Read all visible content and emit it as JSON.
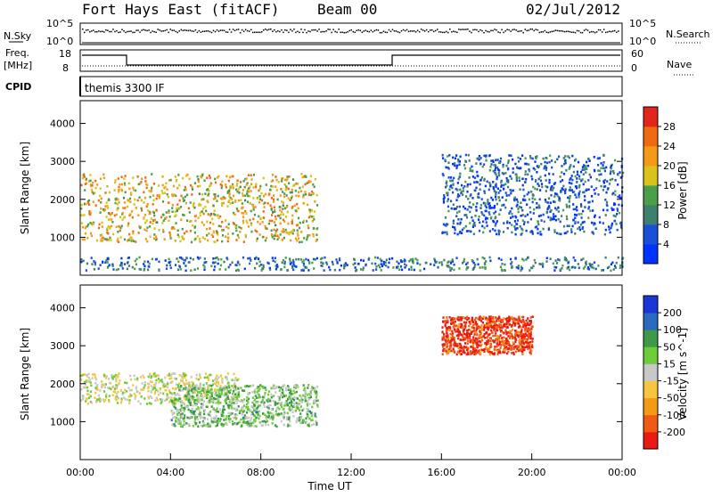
{
  "header": {
    "station": "Fort Hays East (fitACF)",
    "beam": "Beam 00",
    "date": "02/Jul/2012"
  },
  "noise_panel": {
    "left_label": "N.Sky",
    "left_ticks": [
      "10^5",
      "10^0"
    ],
    "right_label": "N.Search",
    "right_ticks": [
      "10^5",
      "10^0"
    ]
  },
  "freq_panel": {
    "left_label_1": "Freq.",
    "left_label_2": "[MHz]",
    "left_ticks": [
      "18",
      "8"
    ],
    "right_label": "Nave",
    "right_ticks": [
      "60",
      "0"
    ],
    "cpid_label": "CPID",
    "cpid_text": "themis 3300 IF"
  },
  "chart_data": [
    {
      "type": "heatmap",
      "title": "",
      "xlabel": "",
      "ylabel": "Slant Range [km]",
      "xlim": [
        0,
        24
      ],
      "ylim": [
        0,
        4600
      ],
      "y_ticks": [
        "1000",
        "2000",
        "3000",
        "4000"
      ],
      "colorbar": {
        "label": "Power [dB]",
        "ticks": [
          "28",
          "24",
          "20",
          "16",
          "12",
          "8",
          "4"
        ],
        "range": [
          0,
          30
        ],
        "colors": [
          "#0033ff",
          "#1a4fd8",
          "#3f7f6e",
          "#4aa04a",
          "#d9c21a",
          "#f59a16",
          "#f06a14",
          "#e3261a"
        ]
      },
      "regions": [
        {
          "name": "ionospheric",
          "t": [
            0,
            10.5
          ],
          "range_km": [
            900,
            2700
          ],
          "level_db": 18
        },
        {
          "name": "ground",
          "t": [
            0,
            24
          ],
          "range_km": [
            150,
            500
          ],
          "level_db": 8
        },
        {
          "name": "late",
          "t": [
            16,
            24
          ],
          "range_km": [
            1100,
            3200
          ],
          "level_db": 6
        }
      ]
    },
    {
      "type": "heatmap",
      "title": "",
      "xlabel": "Time UT",
      "ylabel": "Slant Range [km]",
      "xlim": [
        0,
        24
      ],
      "ylim": [
        0,
        4600
      ],
      "x_ticks": [
        "00:00",
        "04:00",
        "08:00",
        "12:00",
        "16:00",
        "20:00",
        "00:00"
      ],
      "y_ticks": [
        "1000",
        "2000",
        "3000",
        "4000"
      ],
      "colorbar": {
        "label": "Velocity [m s^-1]",
        "ticks": [
          "200",
          "100",
          "50",
          "15",
          "-15",
          "-50",
          "-100",
          "-200"
        ],
        "range": [
          -250,
          250
        ],
        "colors": [
          "#e81a14",
          "#f05a14",
          "#f59a16",
          "#f7c640",
          "#c8c8c8",
          "#6ccc3a",
          "#3e9a4a",
          "#2a6abf",
          "#1a36d6"
        ]
      },
      "regions": [
        {
          "name": "ground",
          "t": [
            0,
            7
          ],
          "range_km": [
            1500,
            2300
          ],
          "velocity_ms": 0
        },
        {
          "name": "mixed",
          "t": [
            4,
            10.5
          ],
          "range_km": [
            900,
            2000
          ],
          "velocity_ms": 60
        },
        {
          "name": "negative",
          "t": [
            16,
            20
          ],
          "range_km": [
            2800,
            3800
          ],
          "velocity_ms": -200
        }
      ]
    }
  ]
}
